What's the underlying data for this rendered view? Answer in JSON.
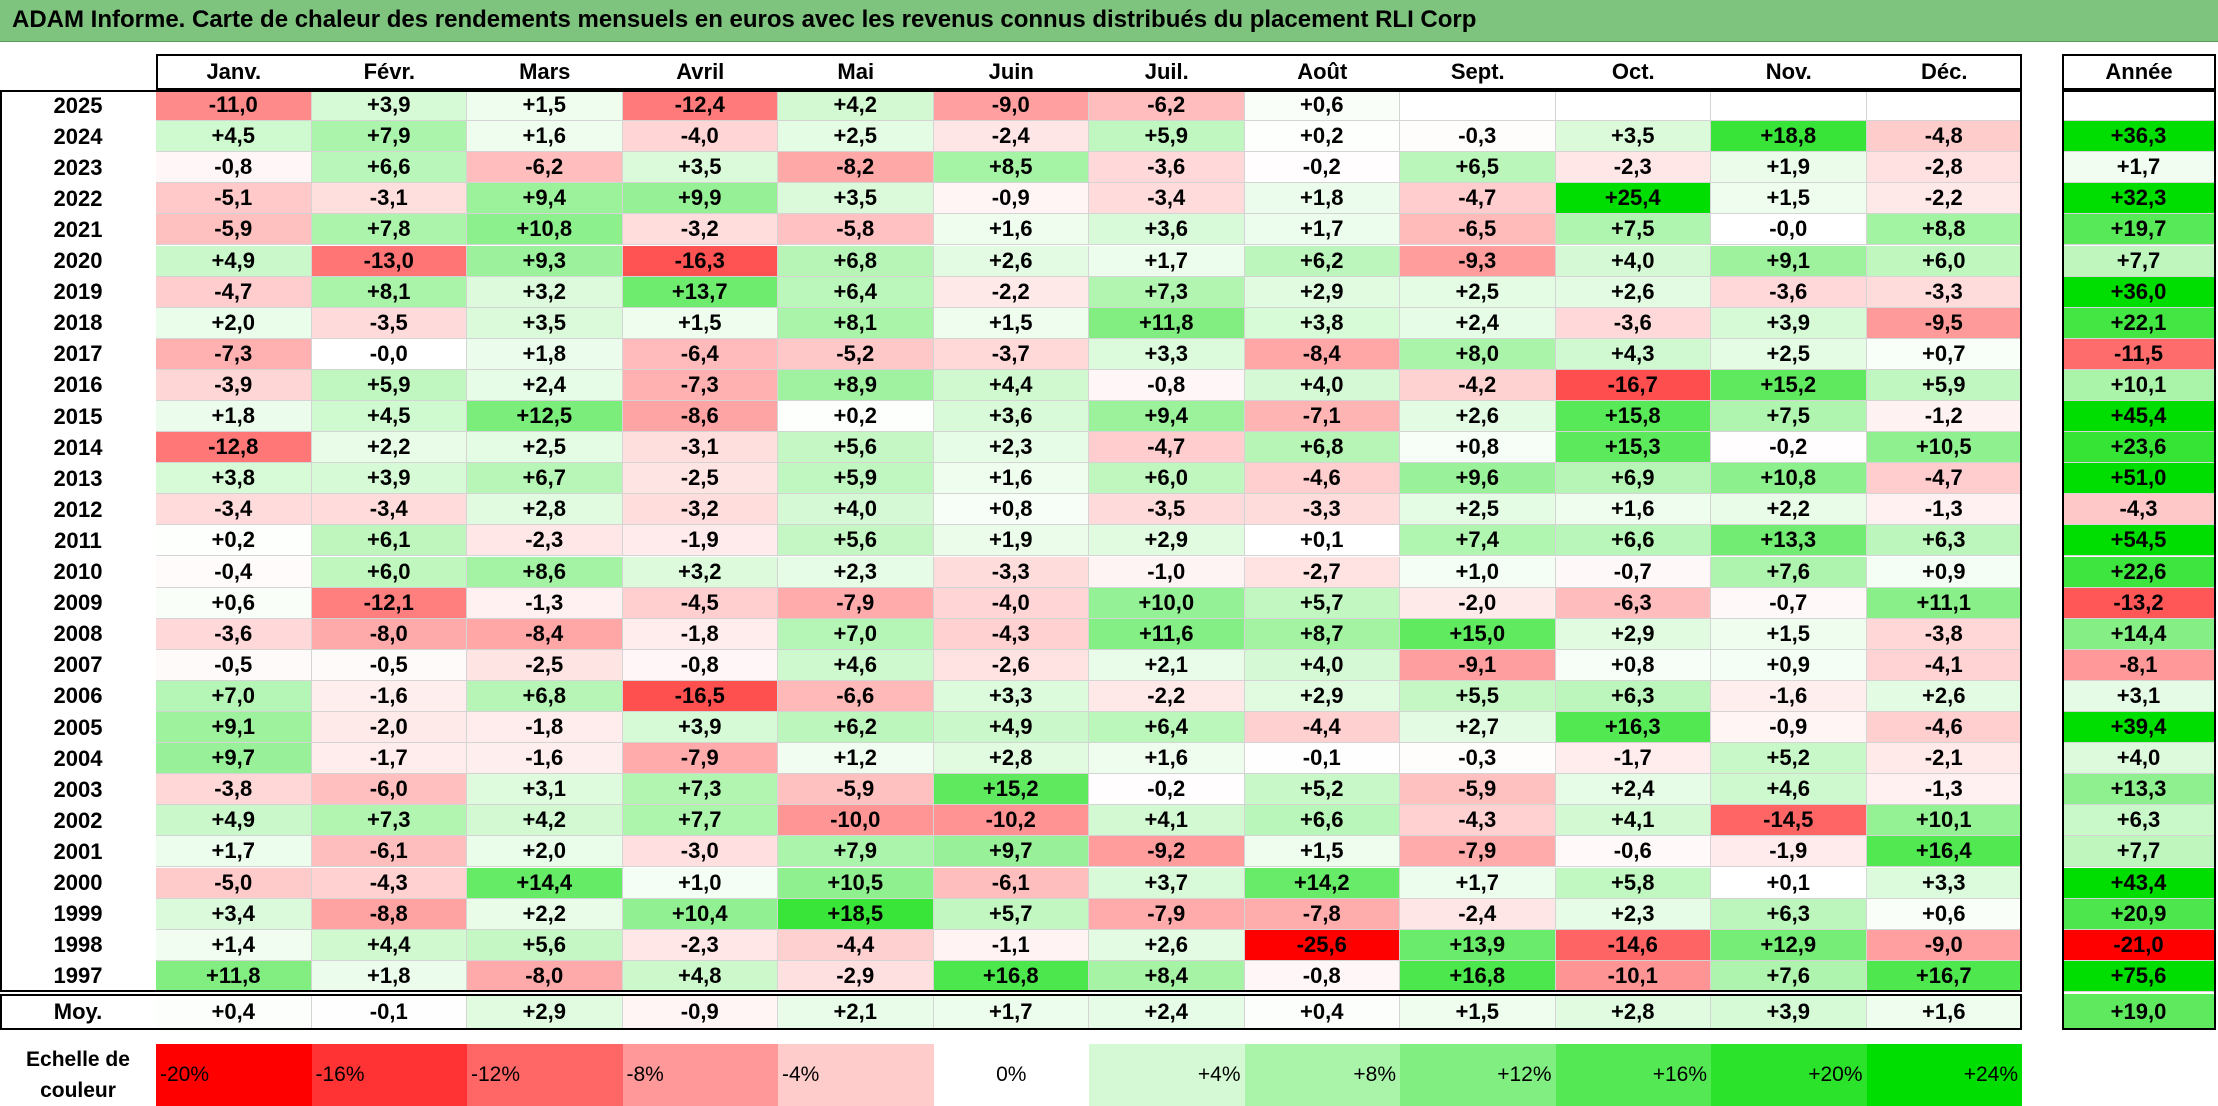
{
  "title": "ADAM Informe. Carte de chaleur des rendements mensuels en euros avec les revenus connus distribués du placement RLI Corp",
  "chart_data": {
    "type": "heatmap",
    "columns": [
      "Janv.",
      "Févr.",
      "Mars",
      "Avril",
      "Mai",
      "Juin",
      "Juil.",
      "Août",
      "Sept.",
      "Oct.",
      "Nov.",
      "Déc."
    ],
    "annual_header": "Année",
    "rows": [
      {
        "year": "2025",
        "values": [
          "-11,0",
          "+3,9",
          "+1,5",
          "-12,4",
          "+4,2",
          "-9,0",
          "-6,2",
          "+0,6",
          "",
          "",
          "",
          ""
        ],
        "annual": ""
      },
      {
        "year": "2024",
        "values": [
          "+4,5",
          "+7,9",
          "+1,6",
          "-4,0",
          "+2,5",
          "-2,4",
          "+5,9",
          "+0,2",
          "-0,3",
          "+3,5",
          "+18,8",
          "-4,8"
        ],
        "annual": "+36,3"
      },
      {
        "year": "2023",
        "values": [
          "-0,8",
          "+6,6",
          "-6,2",
          "+3,5",
          "-8,2",
          "+8,5",
          "-3,6",
          "-0,2",
          "+6,5",
          "-2,3",
          "+1,9",
          "-2,8"
        ],
        "annual": "+1,7"
      },
      {
        "year": "2022",
        "values": [
          "-5,1",
          "-3,1",
          "+9,4",
          "+9,9",
          "+3,5",
          "-0,9",
          "-3,4",
          "+1,8",
          "-4,7",
          "+25,4",
          "+1,5",
          "-2,2"
        ],
        "annual": "+32,3"
      },
      {
        "year": "2021",
        "values": [
          "-5,9",
          "+7,8",
          "+10,8",
          "-3,2",
          "-5,8",
          "+1,6",
          "+3,6",
          "+1,7",
          "-6,5",
          "+7,5",
          "-0,0",
          "+8,8"
        ],
        "annual": "+19,7"
      },
      {
        "year": "2020",
        "values": [
          "+4,9",
          "-13,0",
          "+9,3",
          "-16,3",
          "+6,8",
          "+2,6",
          "+1,7",
          "+6,2",
          "-9,3",
          "+4,0",
          "+9,1",
          "+6,0"
        ],
        "annual": "+7,7"
      },
      {
        "year": "2019",
        "values": [
          "-4,7",
          "+8,1",
          "+3,2",
          "+13,7",
          "+6,4",
          "-2,2",
          "+7,3",
          "+2,9",
          "+2,5",
          "+2,6",
          "-3,6",
          "-3,3"
        ],
        "annual": "+36,0"
      },
      {
        "year": "2018",
        "values": [
          "+2,0",
          "-3,5",
          "+3,5",
          "+1,5",
          "+8,1",
          "+1,5",
          "+11,8",
          "+3,8",
          "+2,4",
          "-3,6",
          "+3,9",
          "-9,5"
        ],
        "annual": "+22,1"
      },
      {
        "year": "2017",
        "values": [
          "-7,3",
          "-0,0",
          "+1,8",
          "-6,4",
          "-5,2",
          "-3,7",
          "+3,3",
          "-8,4",
          "+8,0",
          "+4,3",
          "+2,5",
          "+0,7"
        ],
        "annual": "-11,5"
      },
      {
        "year": "2016",
        "values": [
          "-3,9",
          "+5,9",
          "+2,4",
          "-7,3",
          "+8,9",
          "+4,4",
          "-0,8",
          "+4,0",
          "-4,2",
          "-16,7",
          "+15,2",
          "+5,9"
        ],
        "annual": "+10,1"
      },
      {
        "year": "2015",
        "values": [
          "+1,8",
          "+4,5",
          "+12,5",
          "-8,6",
          "+0,2",
          "+3,6",
          "+9,4",
          "-7,1",
          "+2,6",
          "+15,8",
          "+7,5",
          "-1,2"
        ],
        "annual": "+45,4"
      },
      {
        "year": "2014",
        "values": [
          "-12,8",
          "+2,2",
          "+2,5",
          "-3,1",
          "+5,6",
          "+2,3",
          "-4,7",
          "+6,8",
          "+0,8",
          "+15,3",
          "-0,2",
          "+10,5"
        ],
        "annual": "+23,6"
      },
      {
        "year": "2013",
        "values": [
          "+3,8",
          "+3,9",
          "+6,7",
          "-2,5",
          "+5,9",
          "+1,6",
          "+6,0",
          "-4,6",
          "+9,6",
          "+6,9",
          "+10,8",
          "-4,7"
        ],
        "annual": "+51,0"
      },
      {
        "year": "2012",
        "values": [
          "-3,4",
          "-3,4",
          "+2,8",
          "-3,2",
          "+4,0",
          "+0,8",
          "-3,5",
          "-3,3",
          "+2,5",
          "+1,6",
          "+2,2",
          "-1,3"
        ],
        "annual": "-4,3"
      },
      {
        "year": "2011",
        "values": [
          "+0,2",
          "+6,1",
          "-2,3",
          "-1,9",
          "+5,6",
          "+1,9",
          "+2,9",
          "+0,1",
          "+7,4",
          "+6,6",
          "+13,3",
          "+6,3"
        ],
        "annual": "+54,5"
      },
      {
        "year": "2010",
        "values": [
          "-0,4",
          "+6,0",
          "+8,6",
          "+3,2",
          "+2,3",
          "-3,3",
          "-1,0",
          "-2,7",
          "+1,0",
          "-0,7",
          "+7,6",
          "+0,9"
        ],
        "annual": "+22,6"
      },
      {
        "year": "2009",
        "values": [
          "+0,6",
          "-12,1",
          "-1,3",
          "-4,5",
          "-7,9",
          "-4,0",
          "+10,0",
          "+5,7",
          "-2,0",
          "-6,3",
          "-0,7",
          "+11,1"
        ],
        "annual": "-13,2"
      },
      {
        "year": "2008",
        "values": [
          "-3,6",
          "-8,0",
          "-8,4",
          "-1,8",
          "+7,0",
          "-4,3",
          "+11,6",
          "+8,7",
          "+15,0",
          "+2,9",
          "+1,5",
          "-3,8"
        ],
        "annual": "+14,4"
      },
      {
        "year": "2007",
        "values": [
          "-0,5",
          "-0,5",
          "-2,5",
          "-0,8",
          "+4,6",
          "-2,6",
          "+2,1",
          "+4,0",
          "-9,1",
          "+0,8",
          "+0,9",
          "-4,1"
        ],
        "annual": "-8,1"
      },
      {
        "year": "2006",
        "values": [
          "+7,0",
          "-1,6",
          "+6,8",
          "-16,5",
          "-6,6",
          "+3,3",
          "-2,2",
          "+2,9",
          "+5,5",
          "+6,3",
          "-1,6",
          "+2,6"
        ],
        "annual": "+3,1"
      },
      {
        "year": "2005",
        "values": [
          "+9,1",
          "-2,0",
          "-1,8",
          "+3,9",
          "+6,2",
          "+4,9",
          "+6,4",
          "-4,4",
          "+2,7",
          "+16,3",
          "-0,9",
          "-4,6"
        ],
        "annual": "+39,4"
      },
      {
        "year": "2004",
        "values": [
          "+9,7",
          "-1,7",
          "-1,6",
          "-7,9",
          "+1,2",
          "+2,8",
          "+1,6",
          "-0,1",
          "-0,3",
          "-1,7",
          "+5,2",
          "-2,1"
        ],
        "annual": "+4,0"
      },
      {
        "year": "2003",
        "values": [
          "-3,8",
          "-6,0",
          "+3,1",
          "+7,3",
          "-5,9",
          "+15,2",
          "-0,2",
          "+5,2",
          "-5,9",
          "+2,4",
          "+4,6",
          "-1,3"
        ],
        "annual": "+13,3"
      },
      {
        "year": "2002",
        "values": [
          "+4,9",
          "+7,3",
          "+4,2",
          "+7,7",
          "-10,0",
          "-10,2",
          "+4,1",
          "+6,6",
          "-4,3",
          "+4,1",
          "-14,5",
          "+10,1"
        ],
        "annual": "+6,3"
      },
      {
        "year": "2001",
        "values": [
          "+1,7",
          "-6,1",
          "+2,0",
          "-3,0",
          "+7,9",
          "+9,7",
          "-9,2",
          "+1,5",
          "-7,9",
          "-0,6",
          "-1,9",
          "+16,4"
        ],
        "annual": "+7,7"
      },
      {
        "year": "2000",
        "values": [
          "-5,0",
          "-4,3",
          "+14,4",
          "+1,0",
          "+10,5",
          "-6,1",
          "+3,7",
          "+14,2",
          "+1,7",
          "+5,8",
          "+0,1",
          "+3,3"
        ],
        "annual": "+43,4"
      },
      {
        "year": "1999",
        "values": [
          "+3,4",
          "-8,8",
          "+2,2",
          "+10,4",
          "+18,5",
          "+5,7",
          "-7,9",
          "-7,8",
          "-2,4",
          "+2,3",
          "+6,3",
          "+0,6"
        ],
        "annual": "+20,9"
      },
      {
        "year": "1998",
        "values": [
          "+1,4",
          "+4,4",
          "+5,6",
          "-2,3",
          "-4,4",
          "-1,1",
          "+2,6",
          "-25,6",
          "+13,9",
          "-14,6",
          "+12,9",
          "-9,0"
        ],
        "annual": "-21,0"
      },
      {
        "year": "1997",
        "values": [
          "+11,8",
          "+1,8",
          "-8,0",
          "+4,8",
          "-2,9",
          "+16,8",
          "+8,4",
          "-0,8",
          "+16,8",
          "-10,1",
          "+7,6",
          "+16,7"
        ],
        "annual": "+75,6"
      }
    ],
    "average": {
      "label": "Moy.",
      "values": [
        "+0,4",
        "-0,1",
        "+2,9",
        "-0,9",
        "+2,1",
        "+1,7",
        "+2,4",
        "+0,4",
        "+1,5",
        "+2,8",
        "+3,9",
        "+1,6"
      ],
      "annual": "+19,0"
    },
    "color_scale": {
      "label_line1": "Echelle de",
      "label_line2": "couleur",
      "stops": [
        "-20%",
        "-16%",
        "-12%",
        "-8%",
        "-4%",
        "0%",
        "+4%",
        "+8%",
        "+12%",
        "+16%",
        "+20%",
        "+24%"
      ],
      "negative_color": "#ff0000",
      "neutral_color": "#ffffff",
      "positive_color": "#00dd00"
    }
  }
}
